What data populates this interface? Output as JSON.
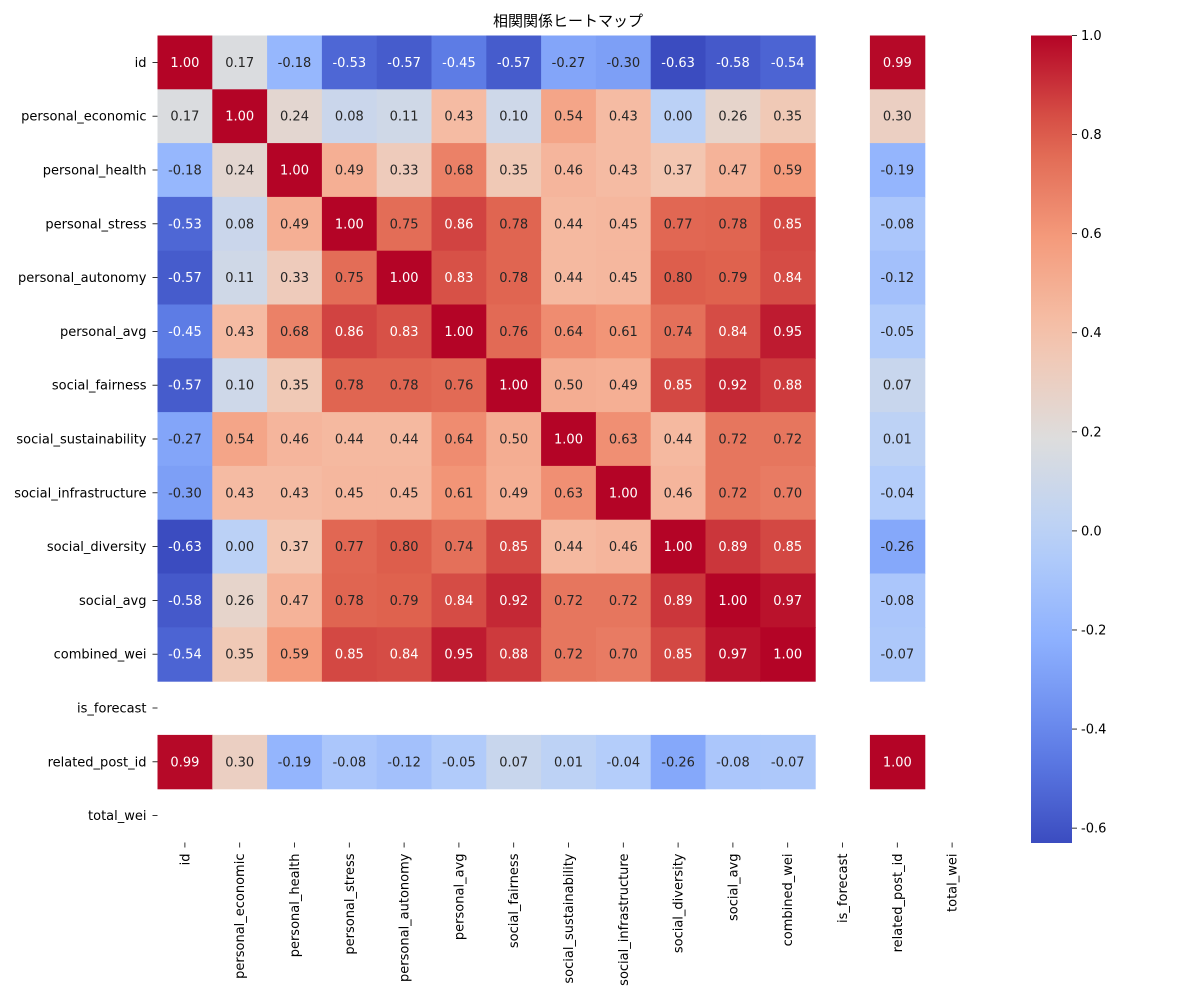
{
  "chart_data": {
    "type": "heatmap",
    "title": "相関関係ヒートマップ",
    "colormap": "coolwarm",
    "rows": [
      "id",
      "personal_economic",
      "personal_health",
      "personal_stress",
      "personal_autonomy",
      "personal_avg",
      "social_fairness",
      "social_sustainability",
      "social_infrastructure",
      "social_diversity",
      "social_avg",
      "combined_wei",
      "is_forecast",
      "related_post_id",
      "total_wei"
    ],
    "columns": [
      "id",
      "personal_economic",
      "personal_health",
      "personal_stress",
      "personal_autonomy",
      "personal_avg",
      "social_fairness",
      "social_sustainability",
      "social_infrastructure",
      "social_diversity",
      "social_avg",
      "combined_wei",
      "is_forecast",
      "related_post_id",
      "total_wei"
    ],
    "values": [
      [
        1.0,
        0.17,
        -0.18,
        -0.53,
        -0.57,
        -0.45,
        -0.57,
        -0.27,
        -0.3,
        -0.63,
        -0.58,
        -0.54,
        null,
        0.99,
        null
      ],
      [
        0.17,
        1.0,
        0.24,
        0.08,
        0.11,
        0.43,
        0.1,
        0.54,
        0.43,
        -0.0,
        0.26,
        0.35,
        null,
        0.3,
        null
      ],
      [
        -0.18,
        0.24,
        1.0,
        0.49,
        0.33,
        0.68,
        0.35,
        0.46,
        0.43,
        0.37,
        0.47,
        0.59,
        null,
        -0.19,
        null
      ],
      [
        -0.53,
        0.08,
        0.49,
        1.0,
        0.75,
        0.86,
        0.78,
        0.44,
        0.45,
        0.77,
        0.78,
        0.85,
        null,
        -0.08,
        null
      ],
      [
        -0.57,
        0.11,
        0.33,
        0.75,
        1.0,
        0.83,
        0.78,
        0.44,
        0.45,
        0.8,
        0.79,
        0.84,
        null,
        -0.12,
        null
      ],
      [
        -0.45,
        0.43,
        0.68,
        0.86,
        0.83,
        1.0,
        0.76,
        0.64,
        0.61,
        0.74,
        0.84,
        0.95,
        null,
        -0.05,
        null
      ],
      [
        -0.57,
        0.1,
        0.35,
        0.78,
        0.78,
        0.76,
        1.0,
        0.5,
        0.49,
        0.85,
        0.92,
        0.88,
        null,
        0.07,
        null
      ],
      [
        -0.27,
        0.54,
        0.46,
        0.44,
        0.44,
        0.64,
        0.5,
        1.0,
        0.63,
        0.44,
        0.72,
        0.72,
        null,
        0.01,
        null
      ],
      [
        -0.3,
        0.43,
        0.43,
        0.45,
        0.45,
        0.61,
        0.49,
        0.63,
        1.0,
        0.46,
        0.72,
        0.7,
        null,
        -0.04,
        null
      ],
      [
        -0.63,
        -0.0,
        0.37,
        0.77,
        0.8,
        0.74,
        0.85,
        0.44,
        0.46,
        1.0,
        0.89,
        0.85,
        null,
        -0.26,
        null
      ],
      [
        -0.58,
        0.26,
        0.47,
        0.78,
        0.79,
        0.84,
        0.92,
        0.72,
        0.72,
        0.89,
        1.0,
        0.97,
        null,
        -0.08,
        null
      ],
      [
        -0.54,
        0.35,
        0.59,
        0.85,
        0.84,
        0.95,
        0.88,
        0.72,
        0.7,
        0.85,
        0.97,
        1.0,
        null,
        -0.07,
        null
      ],
      [
        null,
        null,
        null,
        null,
        null,
        null,
        null,
        null,
        null,
        null,
        null,
        null,
        null,
        null,
        null
      ],
      [
        0.99,
        0.3,
        -0.19,
        -0.08,
        -0.12,
        -0.05,
        0.07,
        0.01,
        -0.04,
        -0.26,
        -0.08,
        -0.07,
        null,
        1.0,
        null
      ],
      [
        null,
        null,
        null,
        null,
        null,
        null,
        null,
        null,
        null,
        null,
        null,
        null,
        null,
        null,
        null
      ]
    ],
    "value_format": "0.00",
    "colorbar": {
      "range": [
        -0.63,
        1.0
      ],
      "ticks": [
        -0.6,
        -0.4,
        -0.2,
        0.0,
        0.2,
        0.4,
        0.6,
        0.8,
        1.0
      ],
      "tick_labels": [
        "-0.6",
        "-0.4",
        "-0.2",
        "0.0",
        "0.2",
        "0.4",
        "0.6",
        "0.8",
        "1.0"
      ]
    }
  }
}
